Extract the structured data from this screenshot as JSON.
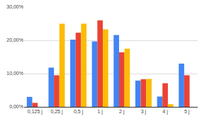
{
  "chart_data": {
    "type": "bar",
    "categories": [
      "0,125 j",
      "0,25 j",
      "0,5 j",
      "1 j",
      "2 j",
      "3 j",
      "4 j",
      "5 j"
    ],
    "series": [
      {
        "color": "#4285f4",
        "values": [
          3.0,
          11.8,
          20.2,
          19.7,
          21.6,
          7.9,
          3.1,
          13.0
        ]
      },
      {
        "color": "#ea4335",
        "values": [
          1.2,
          9.5,
          22.3,
          26.0,
          16.4,
          8.3,
          7.1,
          9.5
        ]
      },
      {
        "color": "#fbbc04",
        "values": [
          0,
          25.0,
          25.0,
          23.3,
          17.5,
          8.4,
          0.8,
          0
        ]
      }
    ],
    "ylim": [
      0,
      30
    ],
    "yticks": [
      {
        "value": 0,
        "label": "0,00%"
      },
      {
        "value": 10,
        "label": "10,00%"
      },
      {
        "value": 20,
        "label": "20,00%"
      },
      {
        "value": 30,
        "label": "30,00%"
      }
    ],
    "grid": true
  }
}
